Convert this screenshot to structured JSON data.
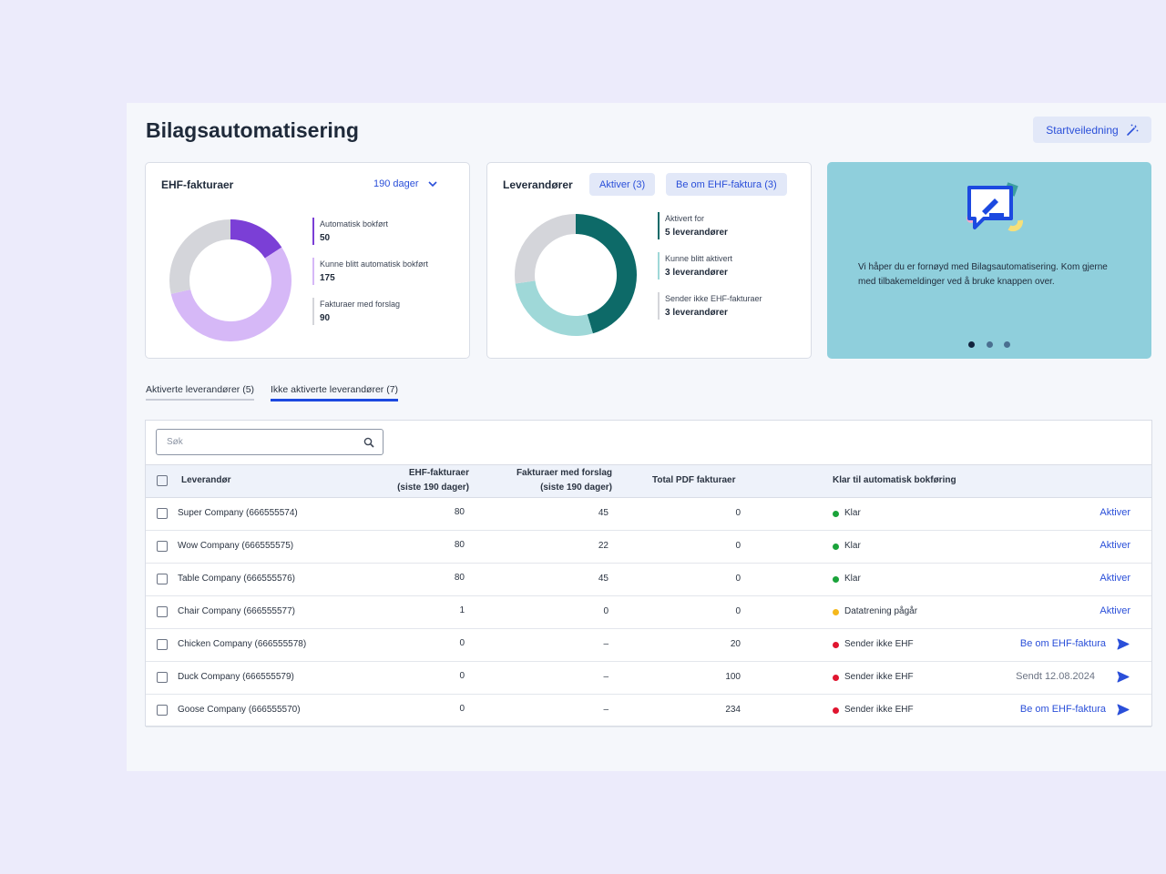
{
  "page": {
    "title": "Bilagsautomatisering",
    "guide_button": "Startveiledning"
  },
  "ehf_card": {
    "title": "EHF-fakturaer",
    "period": "190 dager",
    "legend": [
      {
        "label": "Automatisk bokført",
        "value": "50",
        "color": "#7b3fd6"
      },
      {
        "label": "Kunne blitt automatisk bokført",
        "value": "175",
        "color": "#d6b8f7"
      },
      {
        "label": "Fakturaer med forslag",
        "value": "90",
        "color": "#d4d5da"
      }
    ]
  },
  "supplier_card": {
    "title": "Leverandører",
    "activate_button": "Aktiver (3)",
    "request_button": "Be om EHF-faktura (3)",
    "legend": [
      {
        "label": "Aktivert for",
        "value": "5 leverandører",
        "color": "#0d6a68"
      },
      {
        "label": "Kunne blitt aktivert",
        "value": "3 leverandører",
        "color": "#9fd8d8"
      },
      {
        "label": "Sender ikke EHF-fakturaer",
        "value": "3 leverandører",
        "color": "#d4d5da"
      }
    ]
  },
  "promo": {
    "text": "Vi håper du er fornøyd med Bilagsautomatisering. Kom gjerne med tilbakemeldinger ved å bruke knappen over.",
    "pager_total": 3,
    "pager_active": 1
  },
  "tabs": [
    {
      "label": "Aktiverte leverandører (5)",
      "active": false
    },
    {
      "label": "Ikke aktiverte leverandører (7)",
      "active": true
    }
  ],
  "search": {
    "placeholder": "Søk"
  },
  "table": {
    "headers": {
      "supplier": "Leverandør",
      "ehf_line1": "EHF-fakturaer",
      "ehf_line2": "(siste 190 dager)",
      "sugg_line1": "Fakturaer med forslag",
      "sugg_line2": "(siste 190 dager)",
      "pdf": "Total PDF fakturaer",
      "ready": "Klar til automatisk bokføring"
    },
    "rows": [
      {
        "name": "Super Company (666555574)",
        "ehf": "80",
        "suggestions": "45",
        "pdf": "0",
        "status": "Klar",
        "status_color": "#1aa33a",
        "action": "Aktiver",
        "action_type": "activate"
      },
      {
        "name": "Wow Company (666555575)",
        "ehf": "80",
        "suggestions": "22",
        "pdf": "0",
        "status": "Klar",
        "status_color": "#1aa33a",
        "action": "Aktiver",
        "action_type": "activate"
      },
      {
        "name": "Table Company (666555576)",
        "ehf": "80",
        "suggestions": "45",
        "pdf": "0",
        "status": "Klar",
        "status_color": "#1aa33a",
        "action": "Aktiver",
        "action_type": "activate"
      },
      {
        "name": "Chair Company (666555577)",
        "ehf": "1",
        "suggestions": "0",
        "pdf": "0",
        "status": "Datatrening pågår",
        "status_color": "#f5b81c",
        "action": "Aktiver",
        "action_type": "activate"
      },
      {
        "name": "Chicken Company (666555578)",
        "ehf": "0",
        "suggestions": "–",
        "pdf": "20",
        "status": "Sender ikke EHF",
        "status_color": "#e0152f",
        "action": "Be om EHF-faktura",
        "action_type": "request"
      },
      {
        "name": "Duck Company (666555579)",
        "ehf": "0",
        "suggestions": "–",
        "pdf": "100",
        "status": "Sender ikke EHF",
        "status_color": "#e0152f",
        "action": "Sendt 12.08.2024",
        "action_type": "sent"
      },
      {
        "name": "Goose Company (666555570)",
        "ehf": "0",
        "suggestions": "–",
        "pdf": "234",
        "status": "Sender ikke EHF",
        "status_color": "#e0152f",
        "action": "Be om EHF-faktura",
        "action_type": "request"
      }
    ]
  },
  "colors": {
    "accent": "#2a4fd9",
    "ehf_auto": "#7b3fd6",
    "ehf_could": "#d6b8f7",
    "grey": "#d4d5da",
    "sup_active": "#0d6a68",
    "sup_could": "#9fd8d8",
    "promo_bg": "#8fcfdc"
  }
}
